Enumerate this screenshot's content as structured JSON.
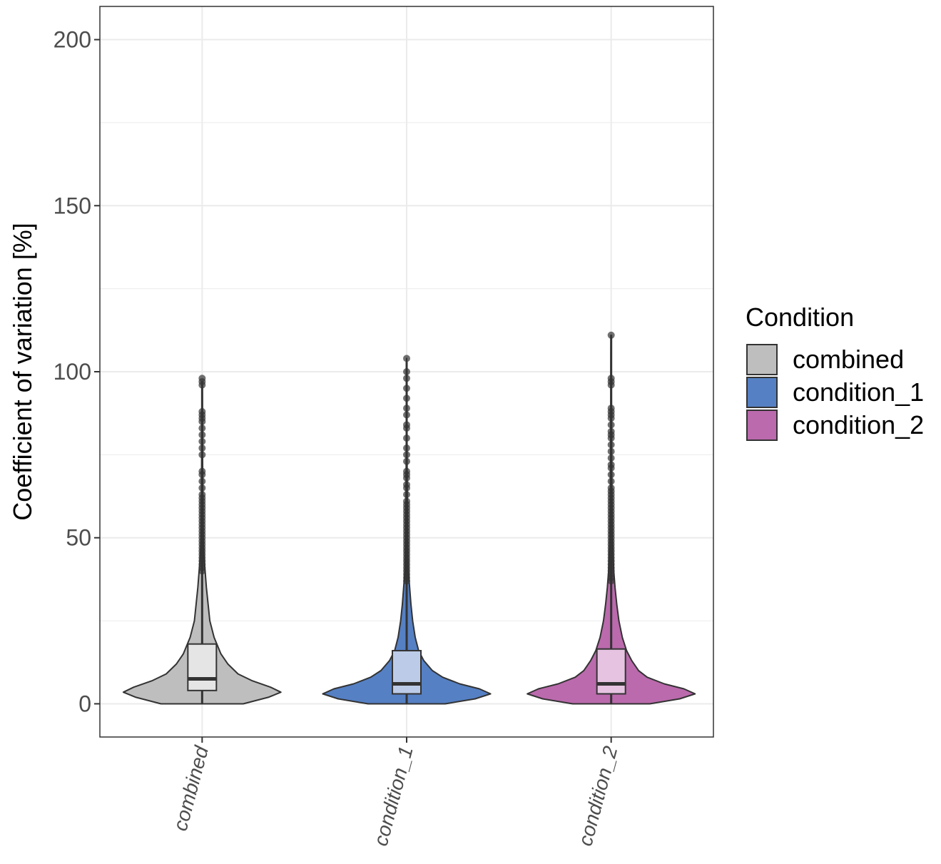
{
  "chart_data": {
    "type": "violin",
    "title": "",
    "xlabel": "",
    "ylabel": "Coefficient of variation [%]",
    "ylim": [
      -10,
      210
    ],
    "yticks": [
      0,
      50,
      100,
      150,
      200
    ],
    "grid": true,
    "legend_title": "Condition",
    "legend_position": "right",
    "categories": [
      "combined",
      "condition_1",
      "condition_2"
    ],
    "series": [
      {
        "name": "combined",
        "color": "#bebebe",
        "box_color": "#e5e5e5",
        "box": {
          "lower_whisker": 0,
          "q1": 4,
          "median": 7.5,
          "q3": 18,
          "upper_whisker": 96
        },
        "violin_profile": [
          [
            0,
            0.48
          ],
          [
            2,
            0.78
          ],
          [
            3.5,
            0.92
          ],
          [
            5,
            0.8
          ],
          [
            7,
            0.58
          ],
          [
            9,
            0.42
          ],
          [
            12,
            0.3
          ],
          [
            15,
            0.22
          ],
          [
            20,
            0.14
          ],
          [
            25,
            0.09
          ],
          [
            30,
            0.07
          ],
          [
            35,
            0.05
          ],
          [
            40,
            0.035
          ],
          [
            45,
            0.02
          ],
          [
            50,
            0.012
          ],
          [
            60,
            0.008
          ],
          [
            70,
            0.006
          ],
          [
            80,
            0.004
          ],
          [
            90,
            0.003
          ],
          [
            97,
            0.001
          ]
        ],
        "outliers": [
          98,
          97,
          96,
          88,
          87,
          86,
          85,
          83,
          81,
          79,
          77,
          75,
          70,
          69,
          67,
          65,
          63,
          62,
          61,
          60,
          59,
          58,
          57,
          56,
          55,
          54,
          53,
          52,
          51,
          50,
          49,
          48,
          47,
          46,
          45,
          44,
          43,
          42,
          41,
          40
        ]
      },
      {
        "name": "condition_1",
        "color": "#5580c4",
        "box_color": "#bccce8",
        "box": {
          "lower_whisker": 0,
          "q1": 3,
          "median": 6,
          "q3": 16,
          "upper_whisker": 103
        },
        "violin_profile": [
          [
            0,
            0.45
          ],
          [
            1.5,
            0.8
          ],
          [
            3,
            0.98
          ],
          [
            4.5,
            0.85
          ],
          [
            6,
            0.62
          ],
          [
            8,
            0.42
          ],
          [
            10,
            0.3
          ],
          [
            13,
            0.2
          ],
          [
            16,
            0.14
          ],
          [
            20,
            0.1
          ],
          [
            25,
            0.07
          ],
          [
            30,
            0.05
          ],
          [
            35,
            0.035
          ],
          [
            40,
            0.02
          ],
          [
            50,
            0.012
          ],
          [
            60,
            0.008
          ],
          [
            70,
            0.006
          ],
          [
            80,
            0.004
          ],
          [
            90,
            0.003
          ],
          [
            100,
            0.002
          ],
          [
            104,
            0.001
          ]
        ],
        "outliers": [
          104,
          100,
          98,
          95,
          92,
          89,
          87,
          84,
          83,
          80,
          77,
          75,
          73,
          70,
          69,
          68,
          66,
          65,
          63,
          61,
          60,
          59,
          58,
          57,
          56,
          55,
          54,
          53,
          52,
          51,
          50,
          49,
          48,
          47,
          46,
          45,
          44,
          43,
          42,
          41,
          40,
          39,
          38,
          37
        ]
      },
      {
        "name": "condition_2",
        "color": "#bb6aad",
        "box_color": "#e6c4e1",
        "box": {
          "lower_whisker": 0,
          "q1": 3,
          "median": 6,
          "q3": 16.5,
          "upper_whisker": 111
        },
        "violin_profile": [
          [
            0,
            0.45
          ],
          [
            1.5,
            0.8
          ],
          [
            3,
            0.98
          ],
          [
            4.5,
            0.85
          ],
          [
            6,
            0.62
          ],
          [
            8,
            0.42
          ],
          [
            10,
            0.32
          ],
          [
            13,
            0.24
          ],
          [
            16,
            0.18
          ],
          [
            20,
            0.13
          ],
          [
            25,
            0.09
          ],
          [
            30,
            0.065
          ],
          [
            35,
            0.045
          ],
          [
            40,
            0.03
          ],
          [
            50,
            0.015
          ],
          [
            60,
            0.01
          ],
          [
            70,
            0.007
          ],
          [
            80,
            0.005
          ],
          [
            90,
            0.004
          ],
          [
            100,
            0.003
          ],
          [
            111,
            0.001
          ]
        ],
        "outliers": [
          111,
          98,
          97,
          96,
          89,
          88,
          87,
          86,
          84,
          82,
          81,
          80,
          78,
          76,
          74,
          72,
          71,
          69,
          67,
          65,
          64,
          63,
          62,
          61,
          60,
          59,
          58,
          57,
          56,
          55,
          54,
          53,
          52,
          51,
          50,
          49,
          48,
          47,
          46,
          45,
          44,
          43,
          42,
          41,
          40,
          39,
          38,
          37
        ]
      }
    ]
  }
}
